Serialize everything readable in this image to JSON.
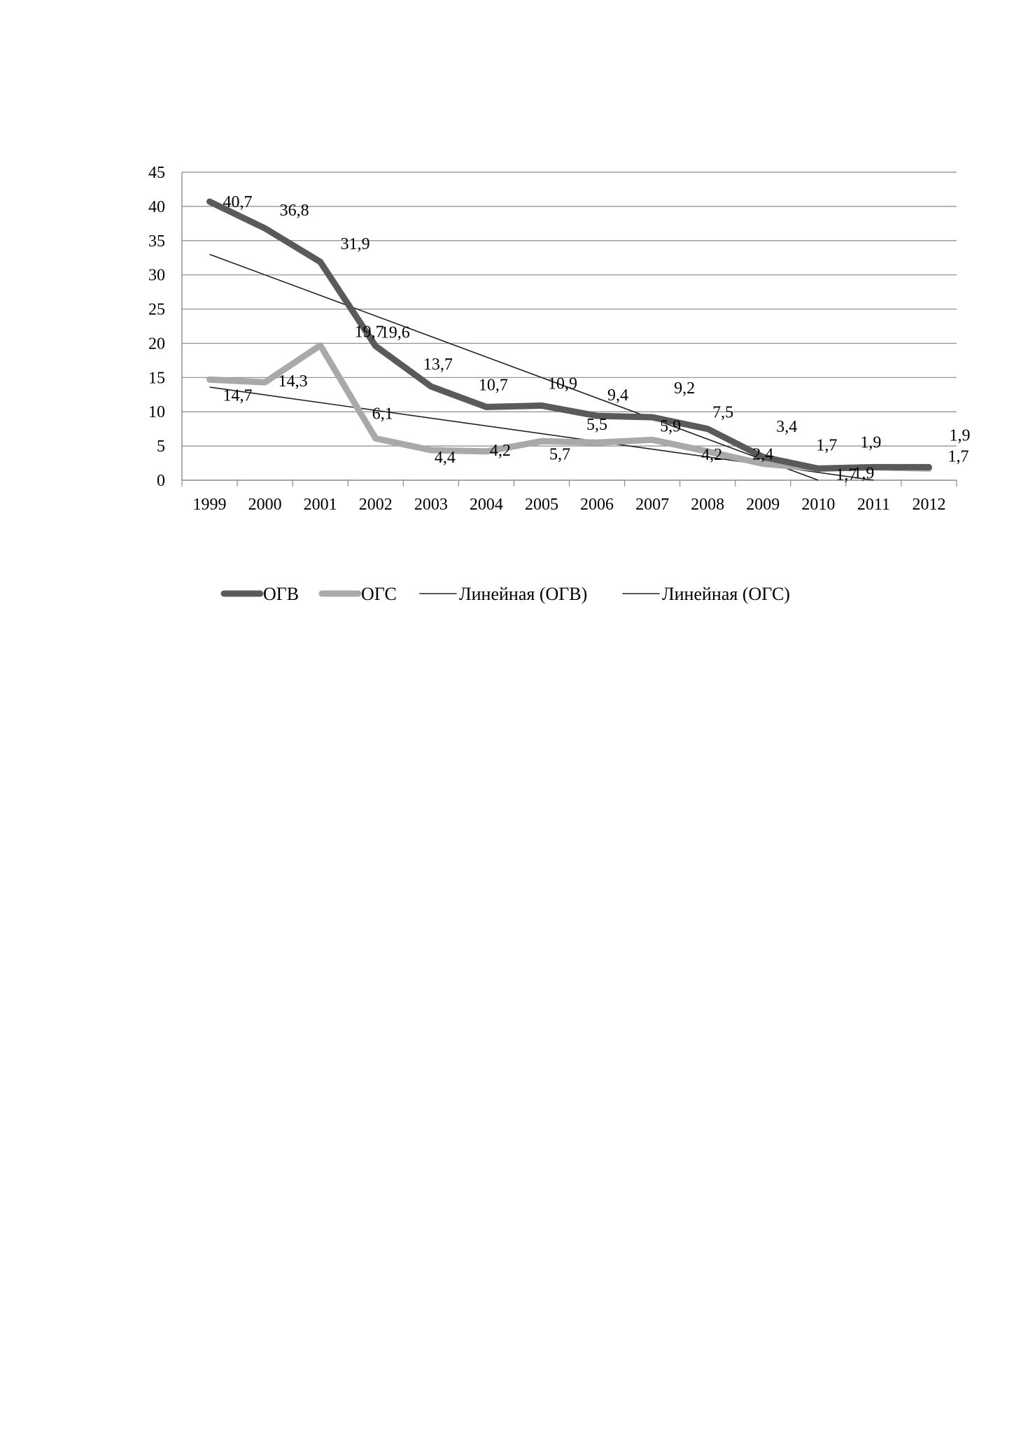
{
  "chart_data": {
    "type": "line",
    "categories": [
      "1999",
      "2000",
      "2001",
      "2002",
      "2003",
      "2004",
      "2005",
      "2006",
      "2007",
      "2008",
      "2009",
      "2010",
      "2011",
      "2012"
    ],
    "ylim": [
      0,
      45
    ],
    "yticks": [
      0,
      5,
      10,
      15,
      20,
      25,
      30,
      35,
      40,
      45
    ],
    "grid": true,
    "legend_position": "bottom",
    "series": [
      {
        "name": "ОГВ",
        "color": "#5a5a5a",
        "style": "thick",
        "values": [
          40.7,
          36.8,
          31.9,
          19.6,
          13.7,
          10.7,
          10.9,
          9.4,
          9.2,
          7.5,
          3.4,
          1.7,
          1.9,
          1.9
        ],
        "labels": [
          "40,7",
          "36,8",
          "31,9",
          "19,6",
          "13,7",
          "10,7",
          "10,9",
          "9,4",
          "9,2",
          "7,5",
          "3,4",
          "1,7",
          "1,9",
          "1,9"
        ]
      },
      {
        "name": "ОГС",
        "color": "#a9a9a9",
        "style": "thick",
        "values": [
          14.7,
          14.3,
          19.7,
          6.1,
          4.4,
          4.2,
          5.7,
          5.5,
          5.9,
          4.2,
          2.4,
          1.7,
          1.9,
          1.7
        ],
        "labels": [
          "14,7",
          "14,3",
          "19,7",
          "6,1",
          "4,4",
          "4,2",
          "5,7",
          "5,5",
          "5,9",
          "4,2",
          "2,4",
          "1,7",
          "1,9",
          "1,7"
        ]
      }
    ],
    "trendlines": [
      {
        "name": "Линейная (ОГВ)",
        "color": "#222222",
        "start": 33.0,
        "end": 0.0,
        "end_category": "2010"
      },
      {
        "name": "Линейная (ОГС)",
        "color": "#222222",
        "start": 13.6,
        "end": 0.0,
        "end_category": "2011"
      }
    ]
  }
}
